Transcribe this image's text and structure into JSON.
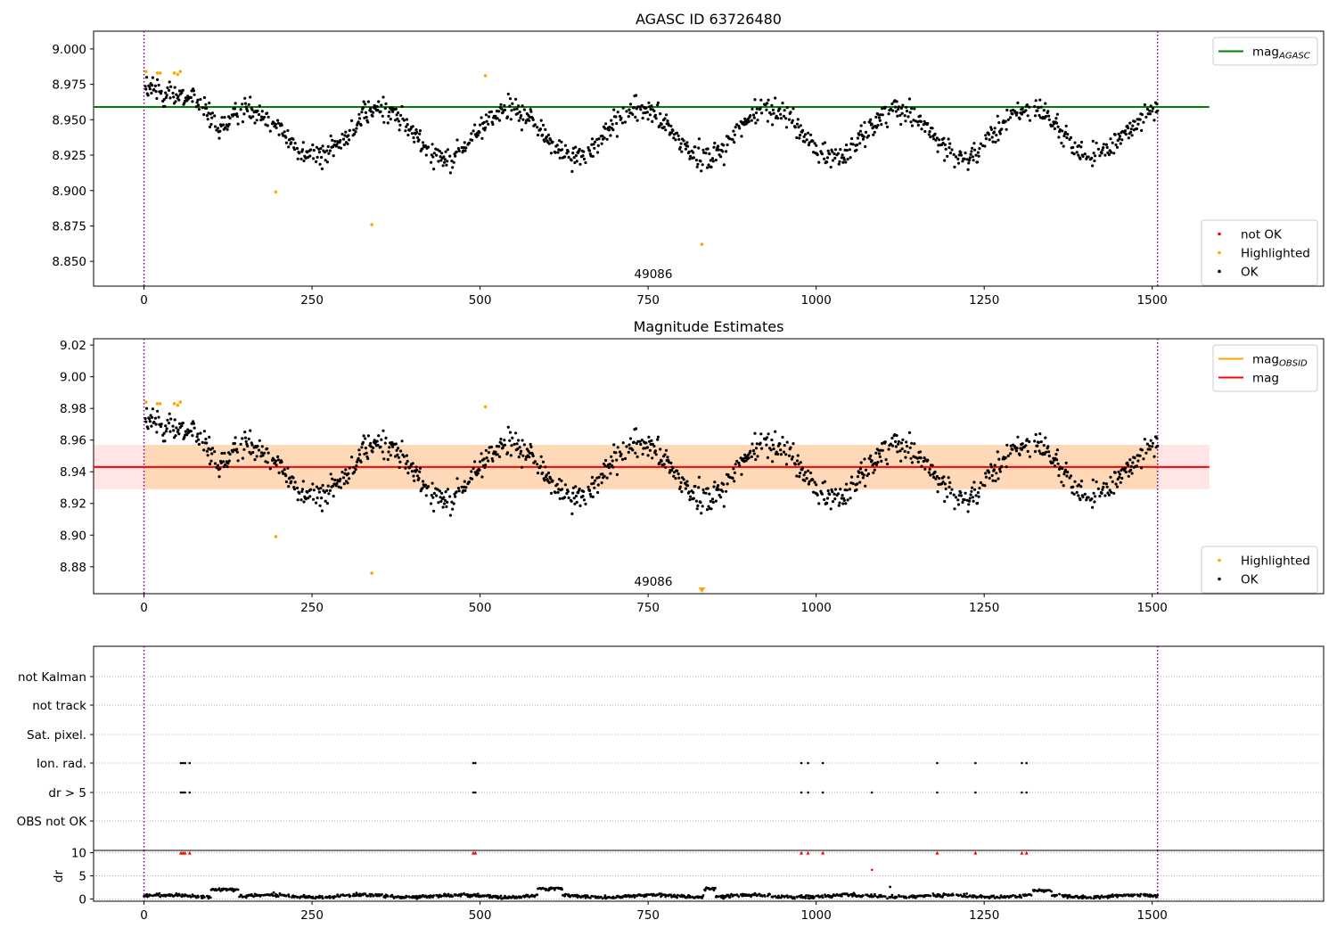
{
  "figure": {
    "sample_count_label": "49086",
    "flag_categories": [
      "not Kalman",
      "not track",
      "Sat. pixel.",
      "Ion. rad.",
      "dr > 5",
      "OBS not OK"
    ]
  },
  "chart_data": [
    {
      "type": "scatter",
      "title": "AGASC ID 63726480",
      "xlabel": "",
      "ylabel": "",
      "xlim": [
        -75,
        1755
      ],
      "ylim": [
        8.8325,
        9.0125
      ],
      "xticks": [
        0,
        250,
        500,
        750,
        1000,
        1250,
        1500
      ],
      "yticks": [
        8.85,
        8.875,
        8.9,
        8.925,
        8.95,
        8.975,
        9.0
      ],
      "ytick_labels": [
        "8.850",
        "8.875",
        "8.900",
        "8.925",
        "8.950",
        "8.975",
        "9.000"
      ],
      "vlines": [
        0,
        1508
      ],
      "mag_agasc": {
        "value": 8.959,
        "x_range": [
          -75,
          1585
        ]
      },
      "ok_model": {
        "start": 8.972,
        "baseline": 8.941,
        "amplitude": 0.017,
        "period": 193,
        "noise": 0.006
      },
      "highlighted_points": [
        [
          3,
          8.984
        ],
        [
          20,
          8.983
        ],
        [
          24,
          8.983
        ],
        [
          45,
          8.983
        ],
        [
          50,
          8.982
        ],
        [
          54,
          8.984
        ],
        [
          196,
          8.899
        ],
        [
          339,
          8.876
        ],
        [
          508,
          8.981
        ],
        [
          830,
          8.862
        ]
      ],
      "legend": [
        {
          "label": "mag",
          "sub": "AGASC",
          "color": "#008000",
          "kind": "line",
          "position": "top-right"
        },
        {
          "label": "not OK",
          "color": "#ff0000",
          "kind": "dot",
          "position": "bottom-right"
        },
        {
          "label": "Highlighted",
          "color": "#ffa500",
          "kind": "dot",
          "position": "bottom-right"
        },
        {
          "label": "OK",
          "color": "#000000",
          "kind": "dot",
          "position": "bottom-right"
        }
      ]
    },
    {
      "type": "scatter",
      "title": "Magnitude Estimates",
      "xlabel": "",
      "ylabel": "",
      "xlim": [
        -75,
        1755
      ],
      "ylim": [
        8.863,
        9.024
      ],
      "xticks": [
        0,
        250,
        500,
        750,
        1000,
        1250,
        1500
      ],
      "yticks": [
        8.88,
        8.9,
        8.92,
        8.94,
        8.96,
        8.98,
        9.0,
        9.02
      ],
      "ytick_labels": [
        "8.88",
        "8.90",
        "8.92",
        "8.94",
        "8.96",
        "8.98",
        "9.00",
        "9.02"
      ],
      "vlines": [
        0,
        1508
      ],
      "mag": {
        "value": 8.943,
        "band": [
          8.929,
          8.957
        ],
        "x_range": [
          -75,
          1585
        ],
        "color": "#ff0000"
      },
      "mag_obsid_band": {
        "color": "#ffa500"
      },
      "ok_model": {
        "start": 8.972,
        "baseline": 8.941,
        "amplitude": 0.017,
        "period": 193,
        "noise": 0.006
      },
      "highlighted_points": [
        [
          3,
          8.984
        ],
        [
          20,
          8.983
        ],
        [
          24,
          8.983
        ],
        [
          45,
          8.983
        ],
        [
          50,
          8.982
        ],
        [
          54,
          8.984
        ],
        [
          196,
          8.899
        ],
        [
          339,
          8.876
        ],
        [
          508,
          8.981
        ]
      ],
      "off_scale_marker": {
        "x": 830,
        "color": "#ffa500"
      },
      "legend": [
        {
          "label": "mag",
          "sub": "OBSID",
          "color": "#ffa500",
          "kind": "line",
          "position": "top-right"
        },
        {
          "label": "mag",
          "color": "#ff0000",
          "kind": "line",
          "position": "top-right"
        },
        {
          "label": "Highlighted",
          "color": "#ffa500",
          "kind": "dot",
          "position": "bottom-right"
        },
        {
          "label": "OK",
          "color": "#000000",
          "kind": "dot",
          "position": "bottom-right"
        }
      ]
    },
    {
      "type": "scatter",
      "title": "",
      "xlabel": "",
      "ylabel": "",
      "xlim": [
        -75,
        1755
      ],
      "flag_rows": [
        "not Kalman",
        "not track",
        "Sat. pixel.",
        "Ion. rad.",
        "dr > 5",
        "OBS not OK"
      ],
      "flags": {
        "Ion. rad.": [
          55,
          58,
          61,
          68,
          490,
          493,
          978,
          988,
          1010,
          1180,
          1237,
          1306,
          1313
        ],
        "dr > 5": [
          55,
          58,
          61,
          68,
          490,
          493,
          978,
          988,
          1010,
          1083,
          1180,
          1237,
          1306,
          1313
        ]
      },
      "vlines": [
        0,
        1508
      ]
    },
    {
      "type": "scatter",
      "title": "",
      "xlabel": "",
      "ylabel": "dr",
      "xlim": [
        -75,
        1755
      ],
      "ylim": [
        -0.5,
        10.5
      ],
      "yticks": [
        0,
        5,
        10
      ],
      "xticks": [
        0,
        250,
        500,
        750,
        1000,
        1250,
        1500
      ],
      "vlines": [
        0,
        1508
      ],
      "clipped_points_x": [
        55,
        58,
        61,
        68,
        490,
        493,
        978,
        988,
        1010,
        1180,
        1237,
        1306,
        1313
      ],
      "red_points": [
        [
          1083,
          6.3
        ]
      ],
      "bumps": [
        [
          100,
          140,
          2.0
        ],
        [
          586,
          622,
          2.2
        ],
        [
          834,
          850,
          2.2
        ],
        [
          1323,
          1350,
          1.8
        ]
      ],
      "isolated_points": [
        [
          1110,
          2.6
        ],
        [
          193,
          1.4
        ]
      ]
    }
  ]
}
